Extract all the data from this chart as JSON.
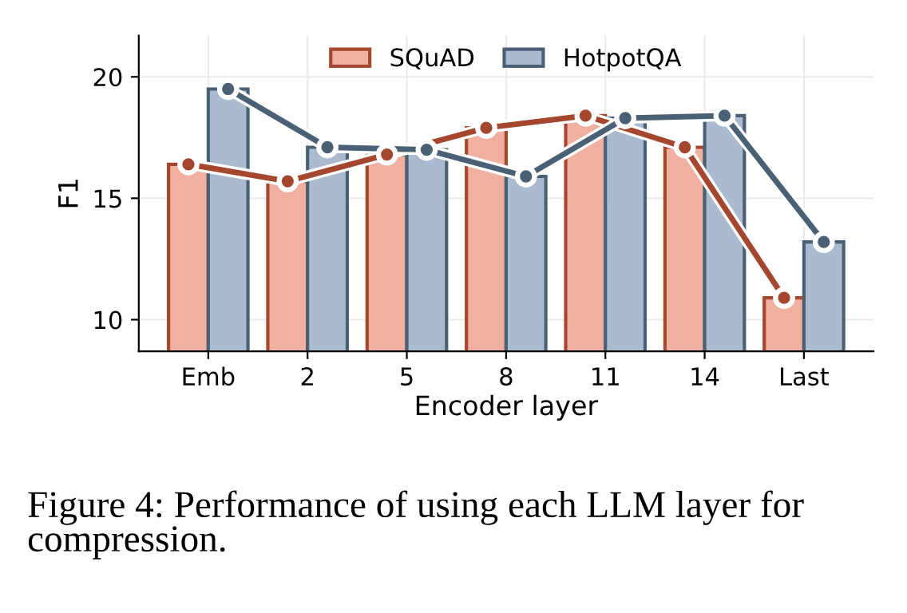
{
  "chart_data": {
    "type": "bar",
    "xlabel": "Encoder layer",
    "ylabel": "F1",
    "categories": [
      "Emb",
      "2",
      "5",
      "8",
      "11",
      "14",
      "Last"
    ],
    "series": [
      {
        "name": "SQuAD",
        "color": "#f0b0a0",
        "values": [
          16.4,
          15.7,
          16.8,
          17.9,
          18.4,
          17.1,
          10.9
        ]
      },
      {
        "name": "HotpotQA",
        "color": "#aabbd0",
        "values": [
          19.5,
          17.1,
          17.0,
          15.9,
          18.3,
          18.4,
          13.2
        ]
      },
      {
        "type": "line",
        "color": "#a5472f",
        "values": [
          16.4,
          15.7,
          16.8,
          17.9,
          18.4,
          17.1,
          10.9
        ]
      },
      {
        "type": "line",
        "color": "#4a6075",
        "values": [
          19.5,
          17.1,
          17.0,
          15.9,
          18.3,
          18.4,
          13.2
        ]
      }
    ],
    "ylim": [
      8.7,
      21.7
    ],
    "yticks": [
      10,
      15,
      20
    ],
    "grid": true,
    "legend": "top",
    "marker": "circle",
    "annotations": [
      "Figure 4: Performance of using each LLM layer for compression."
    ]
  }
}
